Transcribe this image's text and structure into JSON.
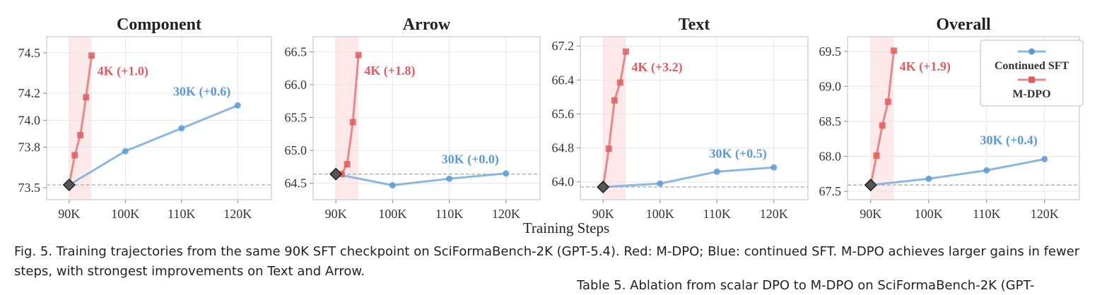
{
  "figure": {
    "shared_xlabel": "Training Steps",
    "caption": "Fig. 5.  Training trajectories from the same 90K SFT checkpoint on SciFormaBench-2K (GPT-5.4). Red: M-DPO; Blue: continued SFT. M-DPO achieves larger gains in fewer steps, with strongest improvements on Text and Arrow.",
    "table_caption": "Table 5.  Ablation from scalar DPO to M-DPO on SciFormaBench-2K (GPT-"
  },
  "colors": {
    "sft": "#5b9bd5",
    "sft_line": "#8ab8e0",
    "mdpo": "#e05c5f",
    "mdpo_line": "#e8888a",
    "band": "#fde8ea",
    "start_marker": "#555555",
    "baseline": "#aaaaaa",
    "grid": "#e6e6e6",
    "frame": "#cccccc"
  },
  "chart_data": [
    {
      "type": "line",
      "title": "Component",
      "xlabel": "",
      "ylabel": "",
      "xlim": [
        86000,
        126000
      ],
      "ylim": [
        73.41,
        74.62
      ],
      "xticks": [
        90000,
        100000,
        110000,
        120000
      ],
      "xtick_labels": [
        "90K",
        "100K",
        "110K",
        "120K"
      ],
      "yticks": [
        73.5,
        73.8,
        74.0,
        74.2,
        74.5
      ],
      "ytick_labels": [
        "73.5",
        "73.8",
        "74.0",
        "74.2",
        "74.5"
      ],
      "grid": true,
      "start_point": {
        "x": 90000,
        "y": 73.52
      },
      "baseline": 73.52,
      "band": [
        90000,
        94000
      ],
      "series": [
        {
          "name": "Continued SFT",
          "x": [
            90000,
            100000,
            110000,
            120000
          ],
          "y": [
            73.52,
            73.77,
            73.94,
            74.11
          ]
        },
        {
          "name": "M-DPO",
          "x": [
            90000,
            91000,
            92000,
            93000,
            94000
          ],
          "y": [
            73.52,
            73.74,
            73.89,
            74.17,
            74.48
          ]
        }
      ],
      "annotations": [
        {
          "text": "4K (+1.0)",
          "series": "M-DPO"
        },
        {
          "text": "30K (+0.6)",
          "series": "Continued SFT"
        }
      ],
      "legend": false
    },
    {
      "type": "line",
      "title": "Arrow",
      "xlabel": "",
      "ylabel": "",
      "xlim": [
        86000,
        126000
      ],
      "ylim": [
        64.25,
        66.73
      ],
      "xticks": [
        90000,
        100000,
        110000,
        120000
      ],
      "xtick_labels": [
        "90K",
        "100K",
        "110K",
        "120K"
      ],
      "yticks": [
        64.5,
        65.0,
        65.5,
        66.0,
        66.5
      ],
      "ytick_labels": [
        "64.5",
        "65.0",
        "65.5",
        "66.0",
        "66.5"
      ],
      "grid": true,
      "start_point": {
        "x": 90000,
        "y": 64.64
      },
      "baseline": 64.64,
      "band": [
        90000,
        94000
      ],
      "series": [
        {
          "name": "Continued SFT",
          "x": [
            90000,
            100000,
            110000,
            120000
          ],
          "y": [
            64.64,
            64.47,
            64.57,
            64.65
          ]
        },
        {
          "name": "M-DPO",
          "x": [
            90000,
            91000,
            92000,
            93000,
            94000
          ],
          "y": [
            64.64,
            64.64,
            64.79,
            65.43,
            66.45
          ]
        }
      ],
      "annotations": [
        {
          "text": "4K (+1.8)",
          "series": "M-DPO"
        },
        {
          "text": "30K (+0.0)",
          "series": "Continued SFT"
        }
      ],
      "legend": false
    },
    {
      "type": "line",
      "title": "Text",
      "xlabel": "",
      "ylabel": "",
      "xlim": [
        86000,
        126000
      ],
      "ylim": [
        63.58,
        67.42
      ],
      "xticks": [
        90000,
        100000,
        110000,
        120000
      ],
      "xtick_labels": [
        "90K",
        "100K",
        "110K",
        "120K"
      ],
      "yticks": [
        64.0,
        64.8,
        65.6,
        66.4,
        67.2
      ],
      "ytick_labels": [
        "64.0",
        "64.8",
        "65.6",
        "66.4",
        "67.2"
      ],
      "grid": true,
      "start_point": {
        "x": 90000,
        "y": 63.88
      },
      "baseline": 63.88,
      "band": [
        90000,
        94000
      ],
      "series": [
        {
          "name": "Continued SFT",
          "x": [
            90000,
            100000,
            110000,
            120000
          ],
          "y": [
            63.88,
            63.96,
            64.24,
            64.34
          ]
        },
        {
          "name": "M-DPO",
          "x": [
            90000,
            91000,
            92000,
            93000,
            94000
          ],
          "y": [
            63.88,
            64.78,
            65.92,
            66.34,
            67.07
          ]
        }
      ],
      "annotations": [
        {
          "text": "4K (+3.2)",
          "series": "M-DPO"
        },
        {
          "text": "30K (+0.5)",
          "series": "Continued SFT"
        }
      ],
      "legend": false
    },
    {
      "type": "line",
      "title": "Overall",
      "xlabel": "",
      "ylabel": "",
      "xlim": [
        86000,
        126000
      ],
      "ylim": [
        67.38,
        69.71
      ],
      "xticks": [
        90000,
        100000,
        110000,
        120000
      ],
      "xtick_labels": [
        "90K",
        "100K",
        "110K",
        "120K"
      ],
      "yticks": [
        67.5,
        68.0,
        68.5,
        69.0,
        69.5
      ],
      "ytick_labels": [
        "67.5",
        "68.0",
        "68.5",
        "69.0",
        "69.5"
      ],
      "grid": true,
      "start_point": {
        "x": 90000,
        "y": 67.59
      },
      "baseline": 67.59,
      "band": [
        90000,
        94000
      ],
      "series": [
        {
          "name": "Continued SFT",
          "x": [
            90000,
            100000,
            110000,
            120000
          ],
          "y": [
            67.59,
            67.68,
            67.8,
            67.96
          ]
        },
        {
          "name": "M-DPO",
          "x": [
            90000,
            91000,
            92000,
            93000,
            94000
          ],
          "y": [
            67.59,
            68.01,
            68.44,
            68.78,
            69.51
          ]
        }
      ],
      "annotations": [
        {
          "text": "4K (+1.9)",
          "series": "M-DPO"
        },
        {
          "text": "30K (+0.4)",
          "series": "Continued SFT"
        }
      ],
      "legend": true,
      "legend_position": "top-right",
      "legend_entries": [
        "Continued SFT",
        "M-DPO"
      ]
    }
  ]
}
